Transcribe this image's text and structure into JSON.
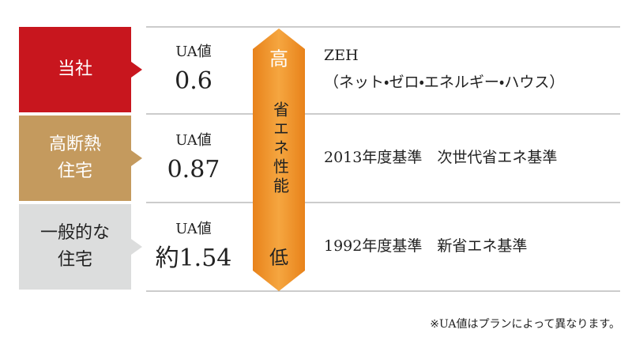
{
  "rows": [
    {
      "label": [
        "当社"
      ],
      "ua_label": "UA値",
      "ua_value": "0.6",
      "standard": [
        "ZEH",
        "（ネット・ゼロ・エネルギー・ハウス）"
      ]
    },
    {
      "label": [
        "高断熱",
        "住宅"
      ],
      "ua_label": "UA値",
      "ua_value": "0.87",
      "standard": [
        "2013年度基準　次世代省エネ基準"
      ]
    },
    {
      "label": [
        "一般的な",
        "住宅"
      ],
      "ua_label": "UA値",
      "ua_value": "約1.54",
      "standard": [
        "1992年度基準　新省エネ基準"
      ]
    }
  ],
  "scale": {
    "high": "高",
    "label": "省エネ性能",
    "low": "低"
  },
  "note": "※UA値はプランによって異なります。"
}
